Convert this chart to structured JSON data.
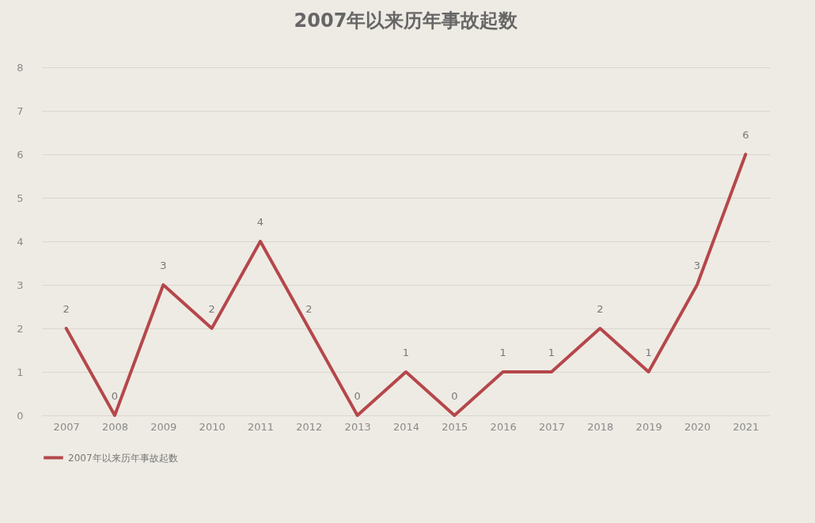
{
  "chart_data": {
    "type": "line",
    "title": "2007年以来历年事故起数",
    "categories": [
      "2007",
      "2008",
      "2009",
      "2010",
      "2011",
      "2012",
      "2013",
      "2014",
      "2015",
      "2016",
      "2017",
      "2018",
      "2019",
      "2020",
      "2021"
    ],
    "series": [
      {
        "name": "2007年以来历年事故起数",
        "color": "#b5474b",
        "values": [
          2,
          0,
          3,
          2,
          4,
          2,
          0,
          1,
          0,
          1,
          1,
          2,
          1,
          3,
          6
        ]
      }
    ],
    "ylim": [
      0,
      8
    ],
    "yticks": [
      0,
      1,
      2,
      3,
      4,
      5,
      6,
      7,
      8
    ],
    "grid": "y",
    "legend": "bottom",
    "data_labels": true,
    "marker": "none",
    "line_style": "solid"
  }
}
